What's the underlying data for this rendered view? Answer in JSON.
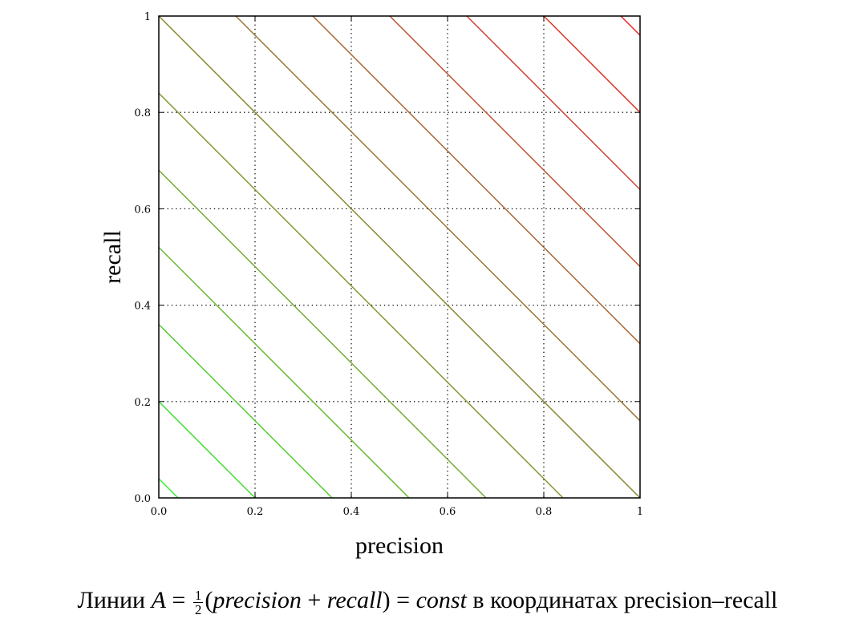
{
  "chart_data": {
    "type": "line",
    "title": "",
    "xlabel": "precision",
    "ylabel": "recall",
    "xlim": [
      0,
      1
    ],
    "ylim": [
      0,
      1
    ],
    "x_ticks": [
      "0.0",
      "0.2",
      "0.4",
      "0.6",
      "0.8",
      "1"
    ],
    "y_ticks": [
      "0.0",
      "0.2",
      "0.4",
      "0.6",
      "0.8",
      "1"
    ],
    "grid": true,
    "legend": "none",
    "series": [
      {
        "A": 0.02,
        "x": [
          0,
          0.04
        ],
        "y": [
          0.04,
          0
        ],
        "color": "#33ee33"
      },
      {
        "A": 0.1,
        "x": [
          0,
          0.2
        ],
        "y": [
          0.2,
          0
        ],
        "color": "#44dd33"
      },
      {
        "A": 0.18,
        "x": [
          0,
          0.36
        ],
        "y": [
          0.36,
          0
        ],
        "color": "#55cc33"
      },
      {
        "A": 0.26,
        "x": [
          0,
          0.52
        ],
        "y": [
          0.52,
          0
        ],
        "color": "#66bb33"
      },
      {
        "A": 0.34,
        "x": [
          0,
          0.68
        ],
        "y": [
          0.68,
          0
        ],
        "color": "#77aa33"
      },
      {
        "A": 0.42,
        "x": [
          0,
          0.84
        ],
        "y": [
          0.84,
          0
        ],
        "color": "#7f9933"
      },
      {
        "A": 0.5,
        "x": [
          0,
          1
        ],
        "y": [
          1,
          0
        ],
        "color": "#888833"
      },
      {
        "A": 0.58,
        "x": [
          0.16,
          1
        ],
        "y": [
          1,
          0.16
        ],
        "color": "#997733"
      },
      {
        "A": 0.66,
        "x": [
          0.32,
          1
        ],
        "y": [
          1,
          0.32
        ],
        "color": "#aa6633"
      },
      {
        "A": 0.74,
        "x": [
          0.48,
          1
        ],
        "y": [
          1,
          0.48
        ],
        "color": "#bb5533"
      },
      {
        "A": 0.82,
        "x": [
          0.64,
          1
        ],
        "y": [
          1,
          0.64
        ],
        "color": "#cc4433"
      },
      {
        "A": 0.9,
        "x": [
          0.8,
          1
        ],
        "y": [
          1,
          0.8
        ],
        "color": "#dd3322"
      },
      {
        "A": 0.98,
        "x": [
          0.96,
          1
        ],
        "y": [
          1,
          0.96
        ],
        "color": "#ee2222"
      }
    ]
  },
  "caption": {
    "prefix": "Линии ",
    "var_a": "A",
    "eq1": " = ",
    "frac_num": "1",
    "frac_den": "2",
    "expr_open": "(",
    "var_precision": "precision",
    "plus": " + ",
    "var_recall": "recall",
    "expr_close": ")",
    "eq2": " = ",
    "var_const": "const",
    "suffix": " в координатах precision–recall"
  }
}
